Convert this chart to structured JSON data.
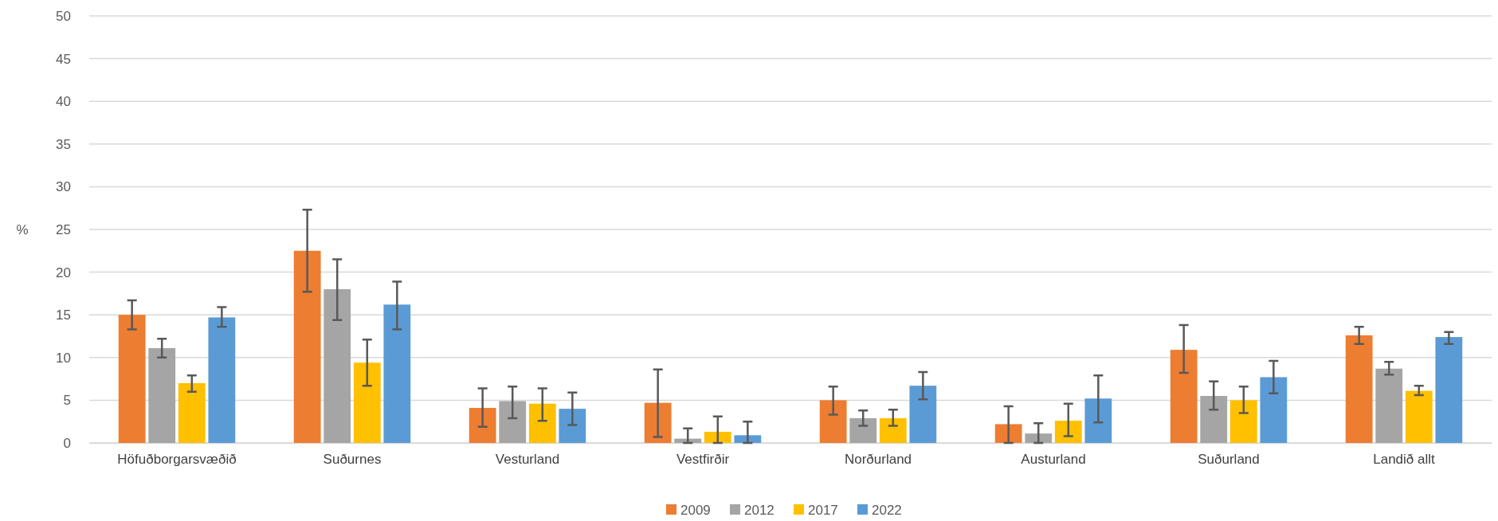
{
  "chart_data": {
    "type": "bar",
    "ylabel": "%",
    "categories": [
      "Höfuðborgarsvæðið",
      "Suðurnes",
      "Vesturland",
      "Vestfirðir",
      "Norðurland",
      "Austurland",
      "Suðurland",
      "Landið allt"
    ],
    "series": [
      {
        "name": "2009",
        "color": "#ed7d31",
        "values": [
          15.0,
          22.5,
          4.1,
          4.7,
          5.0,
          2.2,
          10.9,
          12.6
        ],
        "errors": [
          [
            13.3,
            16.7
          ],
          [
            17.7,
            27.3
          ],
          [
            1.9,
            6.4
          ],
          [
            0.7,
            8.6
          ],
          [
            3.3,
            6.6
          ],
          [
            0,
            4.3
          ],
          [
            8.2,
            13.8
          ],
          [
            11.6,
            13.6
          ]
        ]
      },
      {
        "name": "2012",
        "color": "#a5a5a5",
        "values": [
          11.1,
          18.0,
          4.9,
          0.5,
          2.9,
          1.1,
          5.5,
          8.7
        ],
        "errors": [
          [
            10.0,
            12.2
          ],
          [
            14.4,
            21.5
          ],
          [
            2.9,
            6.6
          ],
          [
            0,
            1.7
          ],
          [
            2.0,
            3.8
          ],
          [
            0,
            2.3
          ],
          [
            3.9,
            7.2
          ],
          [
            8.0,
            9.5
          ]
        ]
      },
      {
        "name": "2017",
        "color": "#ffc000",
        "values": [
          7.0,
          9.4,
          4.6,
          1.3,
          2.9,
          2.6,
          5.0,
          6.1
        ],
        "errors": [
          [
            6.0,
            7.9
          ],
          [
            6.7,
            12.1
          ],
          [
            2.6,
            6.4
          ],
          [
            0,
            3.1
          ],
          [
            2.0,
            3.9
          ],
          [
            0.8,
            4.6
          ],
          [
            3.5,
            6.6
          ],
          [
            5.6,
            6.7
          ]
        ]
      },
      {
        "name": "2022",
        "color": "#5b9bd5",
        "values": [
          14.7,
          16.2,
          4.0,
          0.9,
          6.7,
          5.2,
          7.7,
          12.4
        ],
        "errors": [
          [
            13.6,
            15.9
          ],
          [
            13.3,
            18.9
          ],
          [
            2.1,
            5.9
          ],
          [
            0,
            2.5
          ],
          [
            5.1,
            8.3
          ],
          [
            2.4,
            7.9
          ],
          [
            5.8,
            9.6
          ],
          [
            11.6,
            13.0
          ]
        ]
      }
    ],
    "ylim": [
      0,
      50
    ],
    "yticks": [
      0,
      5,
      10,
      15,
      20,
      25,
      30,
      35,
      40,
      45,
      50
    ],
    "grid": "y",
    "legend": "bottom"
  }
}
